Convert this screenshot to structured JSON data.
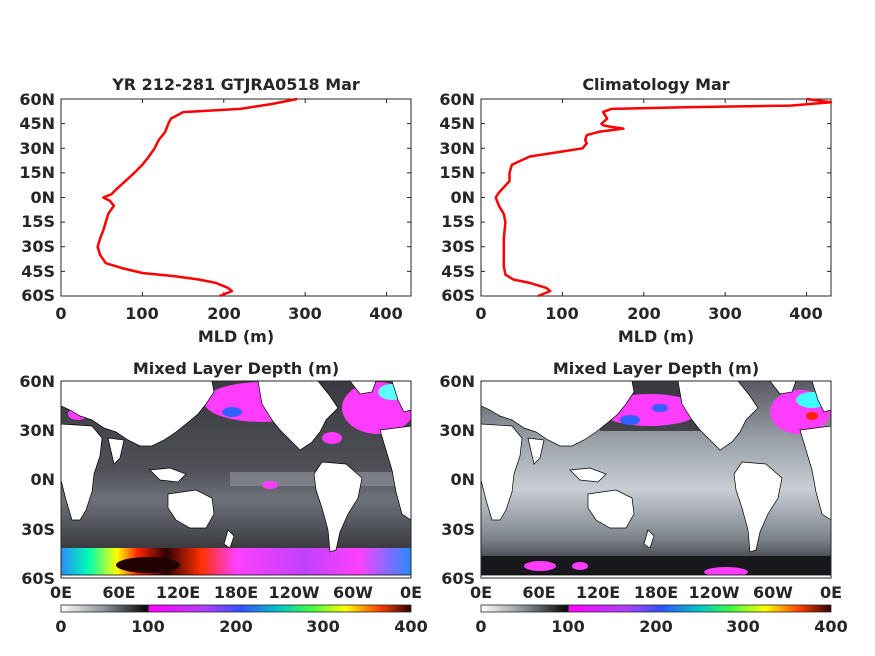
{
  "chart_data": [
    {
      "type": "line",
      "title": "YR 212-281 GTJRA0518 Mar",
      "xlabel": "MLD (m)",
      "ylabel": "",
      "xlim": [
        0,
        430
      ],
      "ylim": [
        -60,
        60
      ],
      "xticks": [
        "0",
        "100",
        "200",
        "300",
        "400"
      ],
      "yticks": [
        "60N",
        "45N",
        "30N",
        "15N",
        "0N",
        "15S",
        "30S",
        "45S",
        "60S"
      ],
      "series": [
        {
          "color": "#ff0000",
          "x": [
            195,
            210,
            205,
            190,
            170,
            140,
            100,
            75,
            55,
            48,
            45,
            48,
            52,
            55,
            58,
            65,
            60,
            52,
            62,
            68,
            90,
            100,
            108,
            115,
            120,
            125,
            128,
            132,
            135,
            150,
            220,
            260,
            290
          ],
          "y": [
            -60,
            -57,
            -55,
            -52,
            -50,
            -48,
            -46,
            -43,
            -40,
            -35,
            -30,
            -25,
            -20,
            -15,
            -10,
            -5,
            -2,
            0,
            2,
            5,
            15,
            20,
            25,
            30,
            35,
            38,
            40,
            45,
            48,
            52,
            54,
            57,
            60
          ]
        }
      ]
    },
    {
      "type": "line",
      "title": "Climatology Mar",
      "xlabel": "MLD (m)",
      "ylabel": "",
      "xlim": [
        0,
        430
      ],
      "ylim": [
        -60,
        60
      ],
      "xticks": [
        "0",
        "100",
        "200",
        "300",
        "400"
      ],
      "yticks": [
        "60N",
        "45N",
        "30N",
        "15N",
        "0N",
        "15S",
        "30S",
        "45S",
        "60S"
      ],
      "series": [
        {
          "color": "#ff0000",
          "x": [
            70,
            85,
            80,
            60,
            40,
            30,
            28,
            28,
            28,
            28,
            30,
            28,
            22,
            18,
            22,
            35,
            35,
            38,
            60,
            100,
            125,
            128,
            130,
            128,
            130,
            145,
            175,
            160,
            150,
            148,
            155,
            150,
            160,
            250,
            380,
            430,
            400
          ],
          "y": [
            -60,
            -57,
            -55,
            -52,
            -50,
            -47,
            -42,
            -35,
            -30,
            -25,
            -15,
            -10,
            -5,
            0,
            3,
            10,
            15,
            20,
            25,
            28,
            30,
            32,
            33,
            35,
            38,
            40,
            42,
            43,
            44,
            45,
            48,
            52,
            54,
            55,
            56,
            58,
            60
          ]
        }
      ]
    },
    {
      "type": "heatmap",
      "title": "Mixed Layer Depth (m)",
      "xticks": [
        "0E",
        "60E",
        "120E",
        "180E",
        "120W",
        "60W",
        "0E"
      ],
      "yticks": [
        "60N",
        "30N",
        "0N",
        "30S",
        "60S"
      ],
      "colorbar": {
        "range": [
          0,
          400
        ],
        "ticks": [
          "0",
          "100",
          "200",
          "300",
          "400"
        ]
      }
    },
    {
      "type": "heatmap",
      "title": "Mixed Layer Depth (m)",
      "xticks": [
        "0E",
        "60E",
        "120E",
        "180E",
        "120W",
        "60W",
        "0E"
      ],
      "yticks": [
        "60N",
        "30N",
        "0N",
        "30S",
        "60S"
      ],
      "colorbar": {
        "range": [
          0,
          400
        ],
        "ticks": [
          "0",
          "100",
          "200",
          "300",
          "400"
        ]
      }
    }
  ]
}
